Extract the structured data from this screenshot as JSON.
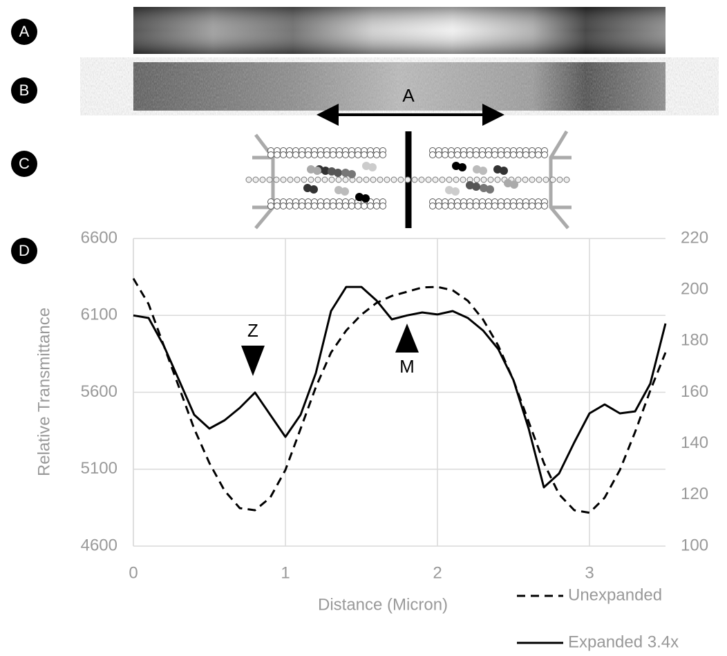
{
  "panel_labels": [
    "A",
    "B",
    "C",
    "D"
  ],
  "arrow_label": "A",
  "chart_data": {
    "type": "line",
    "y_label": "Relative Transmittance",
    "x_label": "Distance (Micron)",
    "annotations": [
      "Z",
      "M"
    ],
    "x": [
      0,
      0.1,
      0.2,
      0.3,
      0.4,
      0.5,
      0.6,
      0.7,
      0.8,
      0.9,
      1.0,
      1.1,
      1.2,
      1.3,
      1.4,
      1.5,
      1.6,
      1.7,
      1.8,
      1.9,
      2.0,
      2.1,
      2.2,
      2.3,
      2.4,
      2.5,
      2.6,
      2.7,
      2.8,
      2.9,
      3.0,
      3.1,
      3.2,
      3.3,
      3.4,
      3.5
    ],
    "xlim": [
      0,
      3.5
    ],
    "xticks": [
      0,
      1,
      2,
      3
    ],
    "ylim": [
      4600,
      6600
    ],
    "yticks": [
      4600,
      5100,
      5600,
      6100,
      6600
    ],
    "y2lim": [
      100,
      220
    ],
    "y2ticks": [
      100,
      120,
      140,
      160,
      180,
      200,
      220
    ],
    "grid": true,
    "legend": "bottom-right",
    "series": [
      {
        "name": "Unexpanded",
        "color": "#000000",
        "dash": true,
        "axis": "y2",
        "values": [
          204.4,
          194.4,
          178.2,
          162.0,
          145.8,
          132.4,
          121.6,
          114.8,
          114.0,
          118.9,
          129.7,
          145.8,
          162.0,
          175.5,
          184.1,
          190.3,
          194.9,
          197.6,
          199.2,
          200.9,
          201.1,
          199.8,
          195.7,
          188.4,
          178.2,
          164.7,
          148.5,
          132.4,
          120.2,
          114.0,
          113.0,
          118.9,
          129.7,
          144.5,
          160.7,
          175.5
        ]
      },
      {
        "name": "Expanded 3.4x",
        "color": "#000000",
        "dash": false,
        "values": [
          6100,
          6083,
          5903,
          5679,
          5454,
          5364,
          5418,
          5499,
          5598,
          5454,
          5310,
          5454,
          5724,
          6128,
          6285,
          6285,
          6196,
          6074,
          6100,
          6119,
          6106,
          6128,
          6083,
          6002,
          5881,
          5679,
          5364,
          4982,
          5072,
          5274,
          5463,
          5521,
          5463,
          5476,
          5656,
          6047
        ]
      }
    ]
  }
}
